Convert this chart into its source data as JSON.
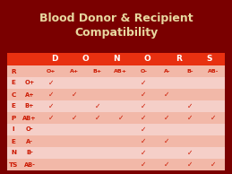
{
  "title": "Blood Donor & Recipient\nCompatibility",
  "title_color": "#e8d8a0",
  "bg_color": "#7a0000",
  "donor_cols": [
    "O+",
    "A+",
    "B+",
    "AB+",
    "O-",
    "A-",
    "B-",
    "AB-"
  ],
  "recipient_col_letters": [
    "R",
    "E",
    "C",
    "E",
    "P",
    "I",
    "E",
    "N",
    "TS"
  ],
  "recipient_labels": [
    "",
    "O+",
    "A+",
    "B+",
    "AB+",
    "O-",
    "A-",
    "B-",
    "AB-"
  ],
  "table_bg_even": "#f2b8a8",
  "table_bg_odd": "#f5cfc8",
  "header_bg": "#e83010",
  "subheader_bg": "#f2b8a8",
  "checkmark": "✓",
  "compatibility": [
    [
      0,
      0,
      0,
      0,
      0,
      0,
      0,
      0
    ],
    [
      1,
      0,
      0,
      0,
      1,
      0,
      0,
      0
    ],
    [
      1,
      1,
      0,
      0,
      1,
      1,
      0,
      0
    ],
    [
      1,
      0,
      1,
      0,
      1,
      0,
      1,
      0
    ],
    [
      1,
      1,
      1,
      1,
      1,
      1,
      1,
      1
    ],
    [
      0,
      0,
      0,
      0,
      1,
      0,
      0,
      0
    ],
    [
      0,
      0,
      0,
      0,
      1,
      1,
      0,
      0
    ],
    [
      0,
      0,
      0,
      0,
      1,
      0,
      1,
      0
    ],
    [
      0,
      0,
      0,
      0,
      1,
      1,
      1,
      1
    ]
  ],
  "donors_header_letters": [
    "D",
    "O",
    "N",
    "O",
    "R",
    "S"
  ],
  "text_color": "#cc1800",
  "header_text_color": "#ffffff"
}
